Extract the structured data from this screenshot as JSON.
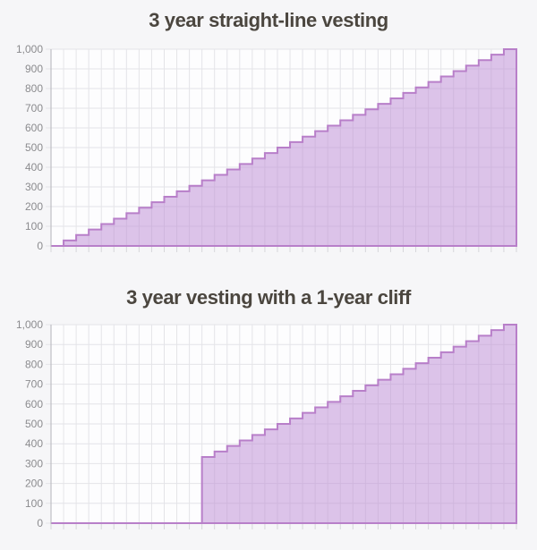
{
  "page": {
    "background": "#f6f6f8"
  },
  "chart_data": [
    {
      "type": "area",
      "stepped": true,
      "title": "3 year straight-line vesting",
      "xlabel": "",
      "ylabel": "",
      "legend": "none",
      "grid": true,
      "x": [
        0,
        1,
        2,
        3,
        4,
        5,
        6,
        7,
        8,
        9,
        10,
        11,
        12,
        13,
        14,
        15,
        16,
        17,
        18,
        19,
        20,
        21,
        22,
        23,
        24,
        25,
        26,
        27,
        28,
        29,
        30,
        31,
        32,
        33,
        34,
        35,
        36
      ],
      "x_unit": "months",
      "values": [
        0,
        27.8,
        55.6,
        83.3,
        111.1,
        138.9,
        166.7,
        194.4,
        222.2,
        250,
        277.8,
        305.6,
        333.3,
        361.1,
        388.9,
        416.7,
        444.4,
        472.2,
        500,
        527.8,
        555.6,
        583.3,
        611.1,
        638.9,
        666.7,
        694.4,
        722.2,
        750,
        777.8,
        805.6,
        833.3,
        861.1,
        888.9,
        916.7,
        944.4,
        972.2,
        1000
      ],
      "ylim": [
        0,
        1000
      ],
      "ytick_labels": [
        "0",
        "100",
        "200",
        "300",
        "400",
        "500",
        "600",
        "700",
        "800",
        "900",
        "1,000"
      ],
      "colors": {
        "fill": "#bb89d4",
        "fill_opacity": 0.5,
        "line": "#b87fc9",
        "grid": "#e4e4e8",
        "tick": "#d6d6da",
        "axis": "#b4b4ba",
        "label": "#8b8b8e",
        "plot_bg": "#fdfdfe",
        "title": "#4b463f"
      }
    },
    {
      "type": "area",
      "stepped": true,
      "title": "3 year vesting with a 1-year cliff",
      "xlabel": "",
      "ylabel": "",
      "legend": "none",
      "grid": true,
      "x": [
        0,
        1,
        2,
        3,
        4,
        5,
        6,
        7,
        8,
        9,
        10,
        11,
        12,
        13,
        14,
        15,
        16,
        17,
        18,
        19,
        20,
        21,
        22,
        23,
        24,
        25,
        26,
        27,
        28,
        29,
        30,
        31,
        32,
        33,
        34,
        35,
        36
      ],
      "x_unit": "months",
      "values": [
        0,
        0,
        0,
        0,
        0,
        0,
        0,
        0,
        0,
        0,
        0,
        0,
        333.3,
        361.1,
        388.9,
        416.7,
        444.4,
        472.2,
        500,
        527.8,
        555.6,
        583.3,
        611.1,
        638.9,
        666.7,
        694.4,
        722.2,
        750,
        777.8,
        805.6,
        833.3,
        861.1,
        888.9,
        916.7,
        944.4,
        972.2,
        1000
      ],
      "ylim": [
        0,
        1000
      ],
      "ytick_labels": [
        "0",
        "100",
        "200",
        "300",
        "400",
        "500",
        "600",
        "700",
        "800",
        "900",
        "1,000"
      ],
      "colors": {
        "fill": "#bb89d4",
        "fill_opacity": 0.5,
        "line": "#b87fc9",
        "grid": "#e4e4e8",
        "tick": "#d6d6da",
        "axis": "#b4b4ba",
        "label": "#8b8b8e",
        "plot_bg": "#fdfdfe",
        "title": "#4b463f"
      }
    }
  ]
}
